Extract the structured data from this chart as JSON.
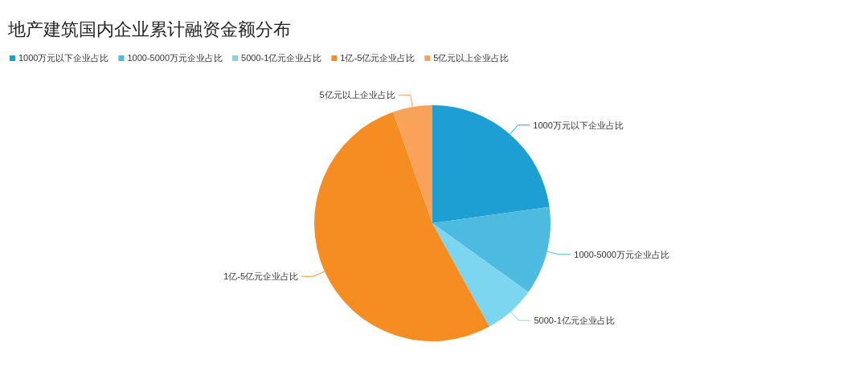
{
  "chart_data": {
    "type": "pie",
    "title": "地产建筑国内企业累计融资金额分布",
    "categories": [
      "1000万元以下企业占比",
      "1000-5000万元企业占比",
      "5000-1亿元企业占比",
      "1亿-5亿元企业占比",
      "5亿元以上企业占比"
    ],
    "values": [
      22.8,
      12.1,
      7.1,
      52.6,
      5.4
    ],
    "colors": [
      "#1e9fd4",
      "#4dbadf",
      "#7dd6f0",
      "#f68d23",
      "#f8a25a"
    ],
    "legend": "top left"
  }
}
